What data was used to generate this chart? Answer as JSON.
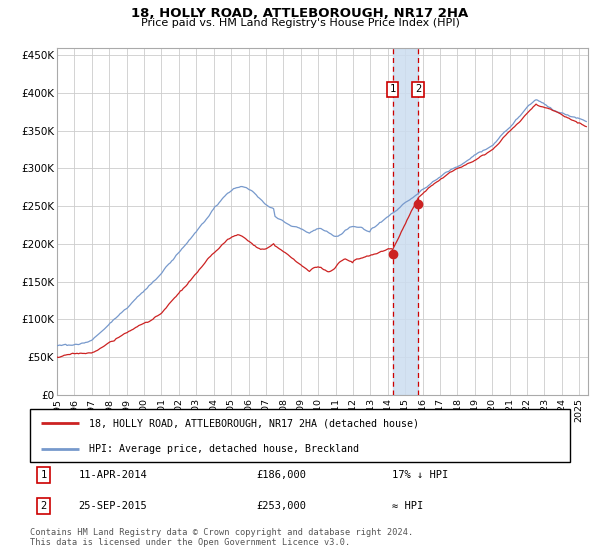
{
  "title": "18, HOLLY ROAD, ATTLEBOROUGH, NR17 2HA",
  "subtitle": "Price paid vs. HM Land Registry's House Price Index (HPI)",
  "legend_line1": "18, HOLLY ROAD, ATTLEBOROUGH, NR17 2HA (detached house)",
  "legend_line2": "HPI: Average price, detached house, Breckland",
  "annotation1_date": "11-APR-2014",
  "annotation1_price": "£186,000",
  "annotation1_hpi": "17% ↓ HPI",
  "annotation2_date": "25-SEP-2015",
  "annotation2_price": "£253,000",
  "annotation2_hpi": "≈ HPI",
  "footer": "Contains HM Land Registry data © Crown copyright and database right 2024.\nThis data is licensed under the Open Government Licence v3.0.",
  "hpi_color": "#7799cc",
  "price_color": "#cc2222",
  "marker_color": "#cc2222",
  "grid_color": "#cccccc",
  "annotation_box_color": "#cc0000",
  "shade_color": "#ccddf0",
  "ylim": [
    0,
    460000
  ],
  "yticks": [
    0,
    50000,
    100000,
    150000,
    200000,
    250000,
    300000,
    350000,
    400000,
    450000
  ],
  "sale1_year": 2014.28,
  "sale1_value": 186000,
  "sale2_year": 2015.73,
  "sale2_value": 253000,
  "xstart": 1995,
  "xend": 2025.5
}
